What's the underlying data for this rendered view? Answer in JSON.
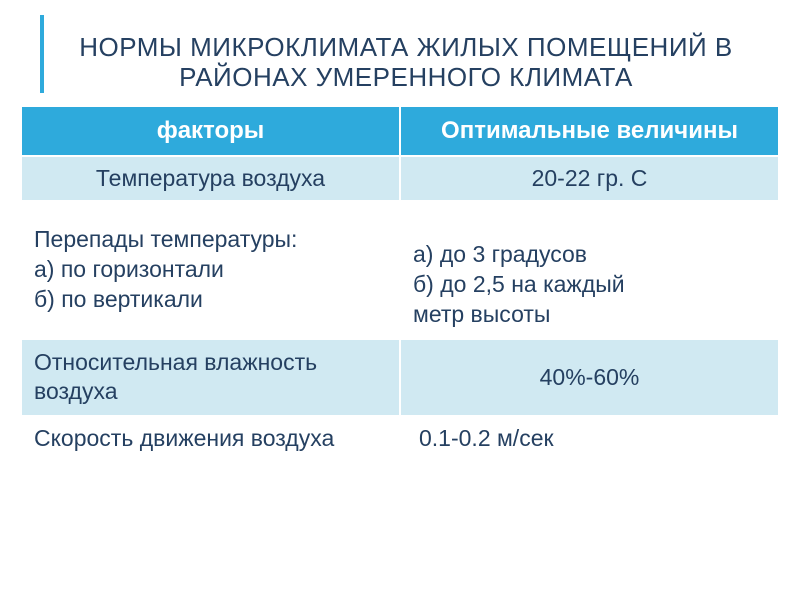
{
  "title": "НОРМЫ МИКРОКЛИМАТА ЖИЛЫХ ПОМЕЩЕНИЙ В РАЙОНАХ УМЕРЕННОГО КЛИМАТА",
  "colors": {
    "accent": "#2eaadc",
    "band_light": "#d0e9f2",
    "band_white": "#ffffff",
    "text_dark": "#254061"
  },
  "header": {
    "col1": "факторы",
    "col2": "Оптимальные величины"
  },
  "rows": {
    "r1": {
      "factor": "Температура воздуха",
      "value": "20-22 гр. С"
    },
    "r2": {
      "factor_line1": "Перепады температуры:",
      "factor_line2": " а) по горизонтали",
      "factor_line3": " б) по вертикали",
      "value_line1": "а) до 3 градусов",
      "value_line2": "б) до 2,5 на каждый",
      "value_line3": "метр высоты"
    },
    "r3": {
      "factor_line1": "Относительная влажность",
      "factor_line2": "воздуха",
      "value": "40%-60%"
    },
    "r4": {
      "factor": "Скорость движения воздуха",
      "value": "0.1-0.2 м/сек"
    }
  }
}
